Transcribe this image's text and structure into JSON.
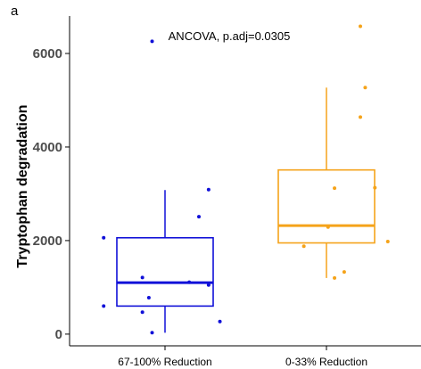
{
  "panel_label": "a",
  "chart_data": {
    "type": "box",
    "ylabel": "Tryptophan degradation",
    "xlabel": "",
    "ylim": [
      -250,
      6800
    ],
    "yticks": [
      0,
      2000,
      4000,
      6000
    ],
    "ytick_labels": [
      "0",
      "2000",
      "4000",
      "6000"
    ],
    "grid": false,
    "annotation": "ANCOVA, p.adj=0.0305",
    "categories": [
      "67-100% Reduction",
      "0-33% Reduction"
    ],
    "groups": [
      {
        "label": "67-100% Reduction",
        "color": "#1010d8",
        "box": {
          "q1": 600,
          "median": 1100,
          "q3": 2060,
          "whisker_low": 30,
          "whisker_high": 3080
        },
        "points": [
          {
            "x": 0.92,
            "y": 6260
          },
          {
            "x": 1.27,
            "y": 3090
          },
          {
            "x": 1.21,
            "y": 2510
          },
          {
            "x": 0.62,
            "y": 2060
          },
          {
            "x": 0.86,
            "y": 1210
          },
          {
            "x": 1.15,
            "y": 1110
          },
          {
            "x": 1.27,
            "y": 1050
          },
          {
            "x": 0.9,
            "y": 780
          },
          {
            "x": 0.62,
            "y": 600
          },
          {
            "x": 0.86,
            "y": 470
          },
          {
            "x": 1.34,
            "y": 270
          },
          {
            "x": 0.92,
            "y": 30
          }
        ]
      },
      {
        "label": "0-33% Reduction",
        "color": "#f5a31a",
        "box": {
          "q1": 1950,
          "median": 2320,
          "q3": 3510,
          "whisker_low": 1200,
          "whisker_high": 5270
        },
        "points": [
          {
            "x": 2.21,
            "y": 6580
          },
          {
            "x": 2.24,
            "y": 5270
          },
          {
            "x": 2.21,
            "y": 4640
          },
          {
            "x": 2.05,
            "y": 3120
          },
          {
            "x": 2.3,
            "y": 3130
          },
          {
            "x": 2.01,
            "y": 2290
          },
          {
            "x": 2.38,
            "y": 1980
          },
          {
            "x": 1.86,
            "y": 1880
          },
          {
            "x": 2.11,
            "y": 1330
          },
          {
            "x": 2.05,
            "y": 1200
          }
        ]
      }
    ]
  }
}
